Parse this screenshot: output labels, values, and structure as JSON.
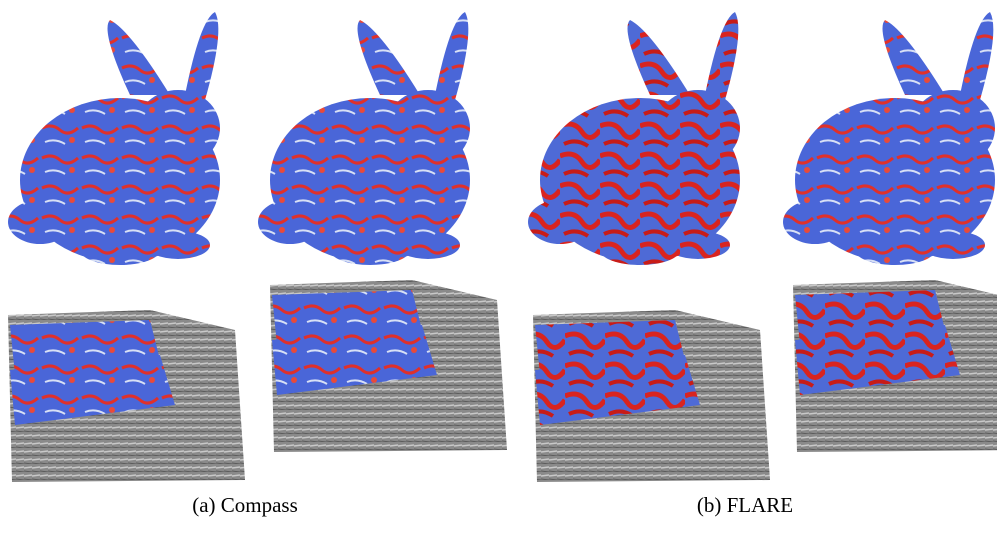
{
  "captions": [
    "(a) Compass",
    "(b) FLARE"
  ]
}
